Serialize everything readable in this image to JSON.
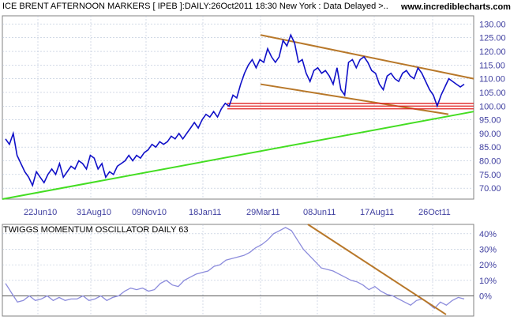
{
  "header": {
    "title": "ICE BRENT AFTERNOON MARKERS [ IPEB ]:DAILY:26Oct2011 18:30 New York : Data Delayed >..",
    "site": "www.incrediblecharts.com"
  },
  "colors": {
    "price_line": "#1010c8",
    "trend_channel": "#b8782a",
    "support_lines": "#e02020",
    "long_trendline": "#44dd22",
    "oscillator_line": "#8c8cdc",
    "osc_trendline": "#b8782a",
    "axis_text": "#4040a0",
    "grid": "#b8c4d8"
  },
  "chart_data": [
    {
      "type": "line",
      "title": "ICE BRENT AFTERNOON MARKERS [ IPEB ]:DAILY:26Oct2011 18:30 New York : Data Delayed >..",
      "xlabel": "",
      "ylabel": "",
      "x_ticks": [
        "22Jun10",
        "31Aug10",
        "09Nov10",
        "18Jan11",
        "29Mar11",
        "08Jun11",
        "17Aug11",
        "26Oct11"
      ],
      "y_ticks": [
        "130.00",
        "125.00",
        "120.00",
        "115.00",
        "110.00",
        "105.00",
        "100.00",
        "95.00",
        "90.00",
        "85.00",
        "80.00",
        "75.00",
        "70.00"
      ],
      "ylim": [
        66,
        133
      ],
      "grid": true,
      "series": [
        {
          "values": [
            88,
            86,
            90,
            82,
            79,
            76,
            74,
            71,
            76,
            74,
            72,
            75,
            77,
            75,
            79,
            74,
            76,
            78,
            77,
            80,
            79,
            77,
            82,
            81,
            77,
            79,
            74,
            76,
            75,
            78,
            79,
            80,
            82,
            80,
            82,
            81,
            83,
            84,
            86,
            85,
            87,
            86,
            87,
            89,
            88,
            90,
            88,
            90,
            92,
            94,
            92,
            95,
            97,
            96,
            98,
            96,
            99,
            101,
            100,
            104,
            103,
            108,
            112,
            115,
            117,
            114,
            117,
            116,
            121,
            118,
            116,
            118,
            124,
            122,
            126,
            123,
            116,
            117,
            112,
            109,
            113,
            114,
            112,
            113,
            111,
            108,
            114,
            106,
            104,
            116,
            117,
            114,
            117,
            118,
            116,
            113,
            112,
            108,
            106,
            111,
            112,
            110,
            109,
            112,
            113,
            111,
            110,
            114,
            112,
            109,
            106,
            104,
            100,
            104,
            107,
            110,
            109,
            108,
            107,
            108
          ]
        }
      ],
      "overlays": [
        {
          "kind": "trendline",
          "color": "long_trendline",
          "from": {
            "x": "start",
            "y": 66
          },
          "to": {
            "x": "end",
            "y": 98
          }
        },
        {
          "kind": "channel_upper",
          "color": "trend_channel",
          "from": {
            "x": "29Mar11",
            "y": 126
          },
          "to": {
            "x": "end",
            "y": 110
          }
        },
        {
          "kind": "channel_lower",
          "color": "trend_channel",
          "from": {
            "x": "29Mar11",
            "y": 108
          },
          "to": {
            "x": "26Oct11",
            "y": 97
          }
        },
        {
          "kind": "support_band",
          "color": "support_lines",
          "levels": [
            99,
            100,
            101
          ]
        }
      ]
    },
    {
      "type": "line",
      "title": "TWIGGS MOMENTUM OSCILLATOR DAILY 63",
      "xlabel": "",
      "ylabel": "",
      "y_ticks": [
        "40%",
        "30%",
        "20%",
        "10%",
        "0%"
      ],
      "ylim": [
        -13,
        46
      ],
      "grid": true,
      "series": [
        {
          "values": [
            8,
            2,
            -4,
            -3,
            0,
            -3,
            -2,
            0,
            -3,
            -1,
            -3,
            -2,
            -2,
            0,
            -3,
            -2,
            0,
            -3,
            -1,
            0,
            3,
            5,
            4,
            5,
            3,
            4,
            8,
            10,
            7,
            6,
            10,
            12,
            14,
            15,
            16,
            19,
            20,
            23,
            24,
            25,
            26,
            28,
            31,
            33,
            36,
            40,
            42,
            44,
            42,
            36,
            30,
            26,
            22,
            18,
            17,
            16,
            14,
            12,
            10,
            9,
            7,
            4,
            6,
            3,
            1,
            0,
            -2,
            -4,
            -6,
            -3,
            -2,
            -5,
            -8,
            -4,
            -6,
            -3,
            -1,
            -2
          ]
        }
      ],
      "overlays": [
        {
          "kind": "trendline",
          "color": "osc_trendline",
          "from": {
            "x": "29Mar11",
            "y": 46
          },
          "to": {
            "x": "end",
            "y": -12
          }
        }
      ]
    }
  ]
}
